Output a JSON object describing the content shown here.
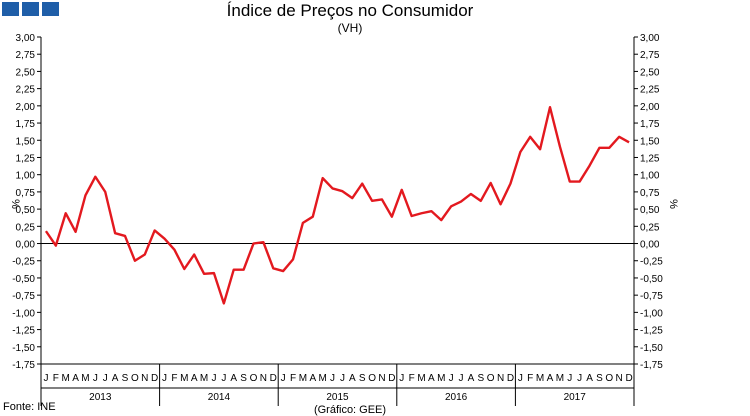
{
  "brand_icon": "ministry-logo-blue-squares",
  "colors": {
    "series": "#e3191f",
    "axis": "#000000",
    "brand": "#1f5ea8"
  },
  "footer": {
    "source": "Fonte: INE",
    "credit": "(Gráfico: GEE)"
  },
  "chart_data": {
    "type": "line",
    "title": "Índice de Preços no Consumidor",
    "subtitle": "(VH)",
    "ylabel": "%",
    "ylabel_right": "%",
    "ylim": [
      -1.75,
      3.0
    ],
    "ytick_step": 0.25,
    "ytick_labels": [
      "3,00",
      "2,75",
      "2,50",
      "2,25",
      "2,00",
      "1,75",
      "1,50",
      "1,25",
      "1,00",
      "0,75",
      "0,50",
      "0,25",
      "0,00",
      "-0,25",
      "-0,50",
      "-0,75",
      "-1,00",
      "-1,25",
      "-1,50",
      "-1,75"
    ],
    "grid": false,
    "legend": "none",
    "month_labels": [
      "J",
      "F",
      "M",
      "A",
      "M",
      "J",
      "J",
      "A",
      "S",
      "O",
      "N",
      "D"
    ],
    "years": [
      "2013",
      "2014",
      "2015",
      "2016",
      "2017"
    ],
    "series": [
      {
        "values": [
          0.18,
          -0.03,
          0.44,
          0.17,
          0.7,
          0.97,
          0.75,
          0.15,
          0.11,
          -0.25,
          -0.16,
          0.19,
          0.07,
          -0.09,
          -0.37,
          -0.16,
          -0.44,
          -0.43,
          -0.87,
          -0.38,
          -0.38,
          0.0,
          0.02,
          -0.36,
          -0.4,
          -0.23,
          0.3,
          0.39,
          0.95,
          0.8,
          0.76,
          0.66,
          0.87,
          0.62,
          0.64,
          0.39,
          0.78,
          0.4,
          0.44,
          0.47,
          0.34,
          0.54,
          0.61,
          0.72,
          0.62,
          0.88,
          0.57,
          0.87,
          1.33,
          1.55,
          1.37,
          1.98,
          1.41,
          0.9,
          0.9,
          1.13,
          1.39,
          1.39,
          1.55,
          1.47
        ]
      }
    ]
  }
}
